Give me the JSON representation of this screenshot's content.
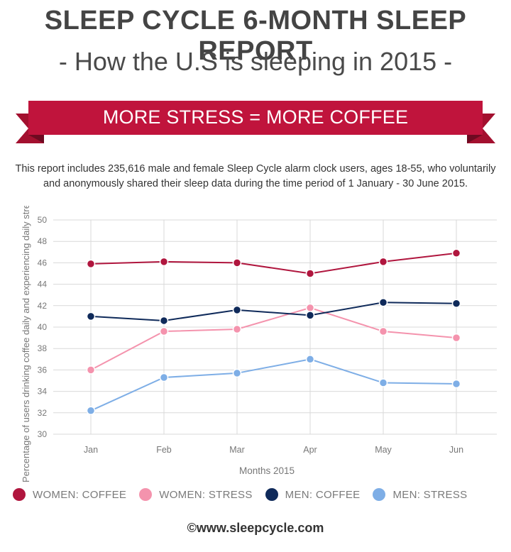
{
  "header": {
    "title": "SLEEP CYCLE 6-MONTH SLEEP REPORT",
    "subtitle": "- How the U.S is sleeping in 2015 -"
  },
  "banner": {
    "text": "MORE STRESS = MORE COFFEE",
    "color": "#c0143c",
    "fold_color": "#8e0f2c"
  },
  "description": {
    "line1": "This report includes 235,616 male and female Sleep Cycle alarm clock users, ages 18-55, who voluntarily",
    "line2": "and anonymously shared their sleep data during the time period of 1 January - 30 June 2015."
  },
  "chart_data": {
    "type": "line",
    "categories": [
      "Jan",
      "Feb",
      "Mar",
      "Apr",
      "May",
      "Jun"
    ],
    "xlabel": "Months 2015",
    "ylabel": "Percentage of users drinking coffee daily and experiencing daily stress",
    "ylim": [
      30,
      50
    ],
    "yticks": [
      30,
      32,
      34,
      36,
      38,
      40,
      42,
      44,
      46,
      48,
      50
    ],
    "grid": true,
    "legend_position": "bottom",
    "series": [
      {
        "name": "WOMEN: COFFEE",
        "color": "#b0163e",
        "values": [
          45.9,
          46.1,
          46.0,
          45.0,
          46.1,
          46.9
        ]
      },
      {
        "name": "WOMEN: STRESS",
        "color": "#f493ad",
        "values": [
          36.0,
          39.6,
          39.8,
          41.8,
          39.6,
          39.0
        ]
      },
      {
        "name": "MEN: COFFEE",
        "color": "#0f2a5a",
        "values": [
          41.0,
          40.6,
          41.6,
          41.1,
          42.3,
          42.2
        ]
      },
      {
        "name": "MEN: STRESS",
        "color": "#7eaee6",
        "values": [
          32.2,
          35.3,
          35.7,
          37.0,
          34.8,
          34.7
        ]
      }
    ]
  },
  "footer": {
    "text": "©www.sleepcycle.com"
  }
}
